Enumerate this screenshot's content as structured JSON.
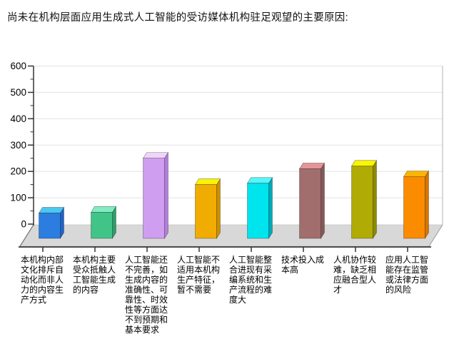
{
  "chart_data": {
    "type": "bar",
    "style": "3d-column",
    "title": "尚未在机构层面应用生成式人工智能的受访媒体机构驻足观望的主要原因:",
    "categories": [
      "本机构内部\n文化排斥自\n动化而非人\n力的内容生\n产方式",
      "本机构主要\n受众抵触人\n工智能生成\n的内容",
      "人工智能还\n不完善，如\n生成内容的\n准确性、可\n靠性、时效\n性等方面达\n不到预期和\n基本要求",
      "人工智能不\n适用本机构\n生产特征，\n暂不需要",
      "人工智能整\n合进现有采\n编系统和生\n产流程的难\n度大",
      "技术投入成\n本高",
      "人机协作较\n难，缺乏相\n应融合型人\n才",
      "应用人工智\n能存在监管\n或法律方面\n的风险"
    ],
    "values": [
      42,
      45,
      250,
      150,
      155,
      210,
      220,
      180
    ],
    "bar_colors": [
      {
        "front": "#2b7de0",
        "top": "#4ac8f2",
        "side": "#2064c4"
      },
      {
        "front": "#41c487",
        "top": "#7fedc0",
        "side": "#2f9e69"
      },
      {
        "front": "#cf9ef0",
        "top": "#efd4f8",
        "side": "#b47cde"
      },
      {
        "front": "#f0ac00",
        "top": "#fbf303",
        "side": "#ce9000"
      },
      {
        "front": "#00e4ee",
        "top": "#55f6f8",
        "side": "#00a9b8"
      },
      {
        "front": "#a16d6d",
        "top": "#e59595",
        "side": "#865858"
      },
      {
        "front": "#b0ac05",
        "top": "#fbf500",
        "side": "#8d8a00"
      },
      {
        "front": "#fb8c00",
        "top": "#fcb505",
        "side": "#d67500"
      }
    ],
    "ylim": [
      0,
      600
    ],
    "ytick_interval": 100,
    "yminor_tick_interval": 50,
    "yticks": [
      0,
      100,
      200,
      300,
      400,
      500,
      600
    ],
    "grid": "horizontal-major-only",
    "legend": "none",
    "floor_color": "#d8d8d8",
    "gridline_color": "#e2e2e2",
    "axis_color": "#333333",
    "background_color": "#ffffff"
  }
}
